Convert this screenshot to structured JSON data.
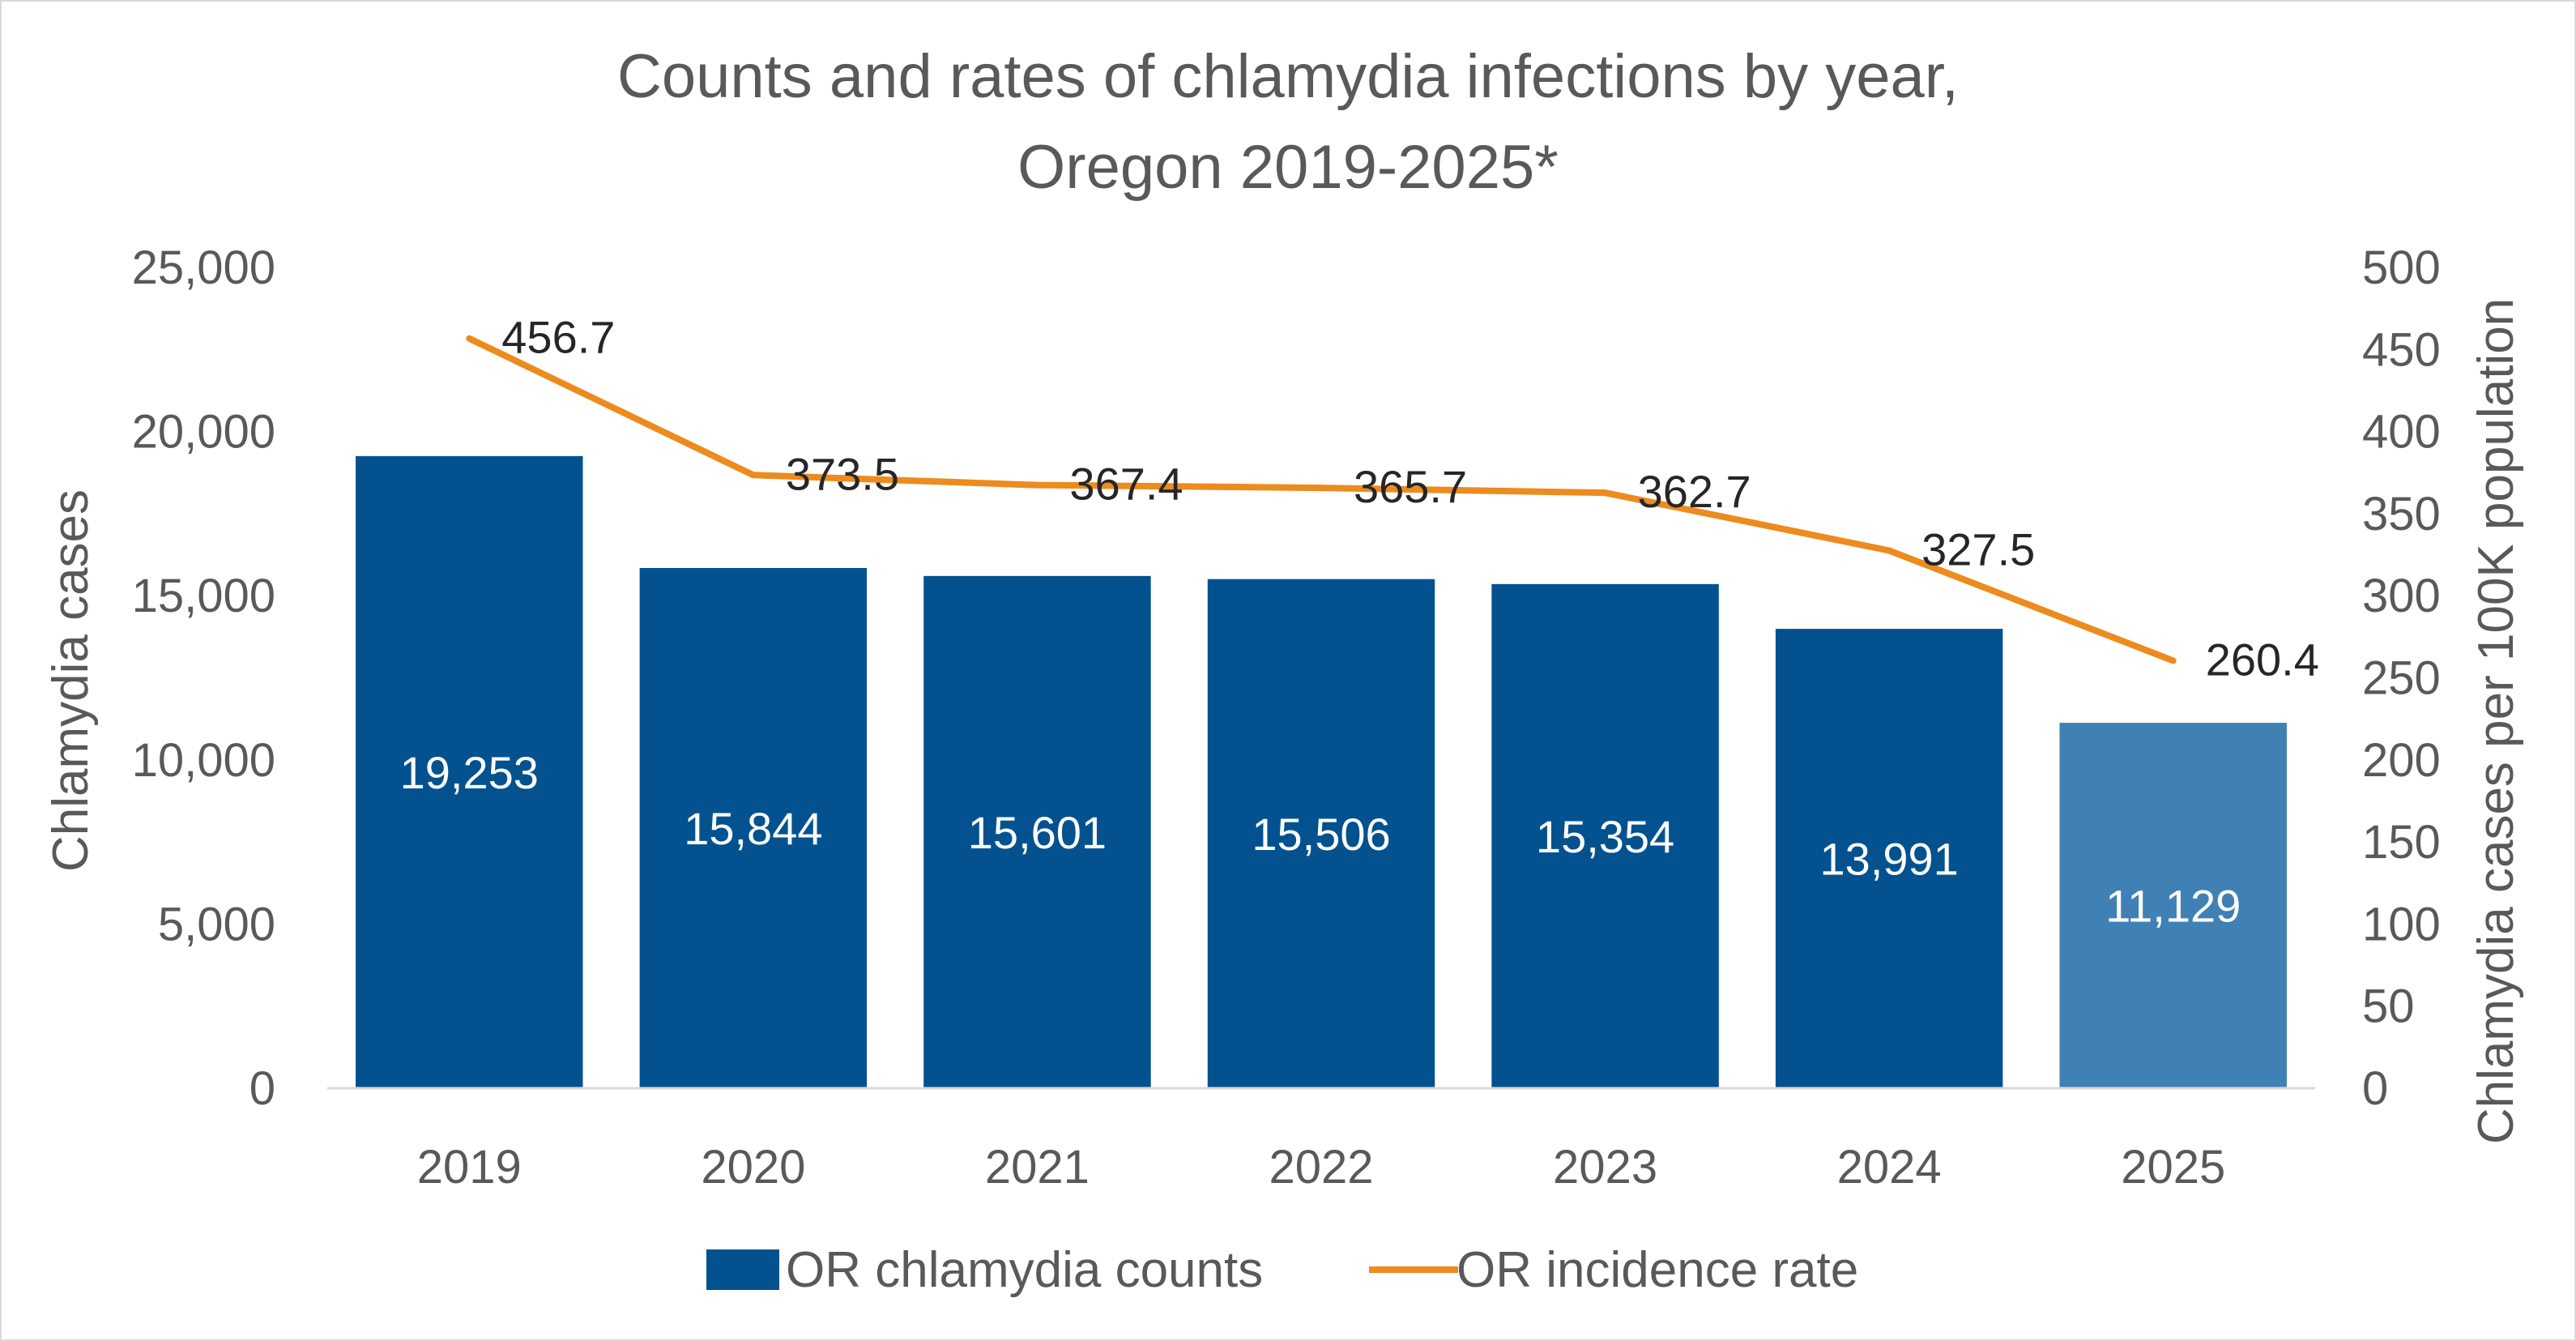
{
  "chart_data": {
    "type": "bar",
    "title": "Counts and rates of chlamydia infections by year,",
    "subtitle": "Oregon 2019-2025*",
    "categories": [
      "2019",
      "2020",
      "2021",
      "2022",
      "2023",
      "2024",
      "2025"
    ],
    "ylabel": "Chlamydia cases",
    "y2label": "Chlamydia cases per 100K population",
    "ylim": [
      0,
      25000
    ],
    "y2lim": [
      0,
      500
    ],
    "yticks": [
      "0",
      "5,000",
      "10,000",
      "15,000",
      "20,000",
      "25,000"
    ],
    "y2ticks": [
      "0",
      "50",
      "100",
      "150",
      "200",
      "250",
      "300",
      "350",
      "400",
      "450",
      "500"
    ],
    "grid": false,
    "legend_position": "bottom",
    "series": [
      {
        "name": "OR chlamydia counts",
        "type": "bar",
        "axis": "left",
        "values": [
          19253,
          15844,
          15601,
          15506,
          15354,
          13991,
          11129
        ],
        "labels": [
          "19,253",
          "15,844",
          "15,601",
          "15,506",
          "15,354",
          "13,991",
          "11,129"
        ],
        "color": "#03528f",
        "highlight_color": "#4081b5"
      },
      {
        "name": "OR incidence rate",
        "type": "line",
        "axis": "right",
        "values": [
          456.7,
          373.5,
          367.4,
          365.7,
          362.7,
          327.5,
          260.4
        ],
        "labels": [
          "456.7",
          "373.5",
          "367.4",
          "365.7",
          "362.7",
          "327.5",
          "260.4"
        ],
        "color": "#ed8b1e"
      }
    ]
  }
}
